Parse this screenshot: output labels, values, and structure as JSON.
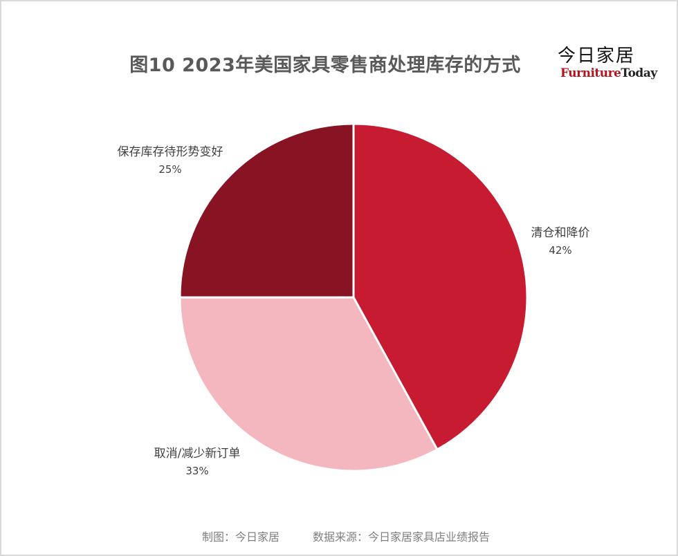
{
  "chart_data": {
    "type": "pie",
    "title": "图10  2023年美国家具零售商处理库存的方式",
    "slices": [
      {
        "label": "清仓和降价",
        "value": 42,
        "value_label": "42%",
        "color": "#c61b31"
      },
      {
        "label": "取消/减少新订单",
        "value": 33,
        "value_label": "33%",
        "color": "#f4b7bf"
      },
      {
        "label": "保存库存待形势变好",
        "value": 25,
        "value_label": "25%",
        "color": "#881322"
      }
    ],
    "start_angle": "12 o'clock",
    "direction": "clockwise",
    "slice_border_color": "#ffffff",
    "legend": "none (labels beside slices)"
  },
  "brand": {
    "name_cn": "今日家居",
    "name_en_part1": "Furniture",
    "name_en_part2": "Today"
  },
  "footer": {
    "maker": "制图：今日家居",
    "source": "数据来源：今日家居家具店业绩报告"
  }
}
